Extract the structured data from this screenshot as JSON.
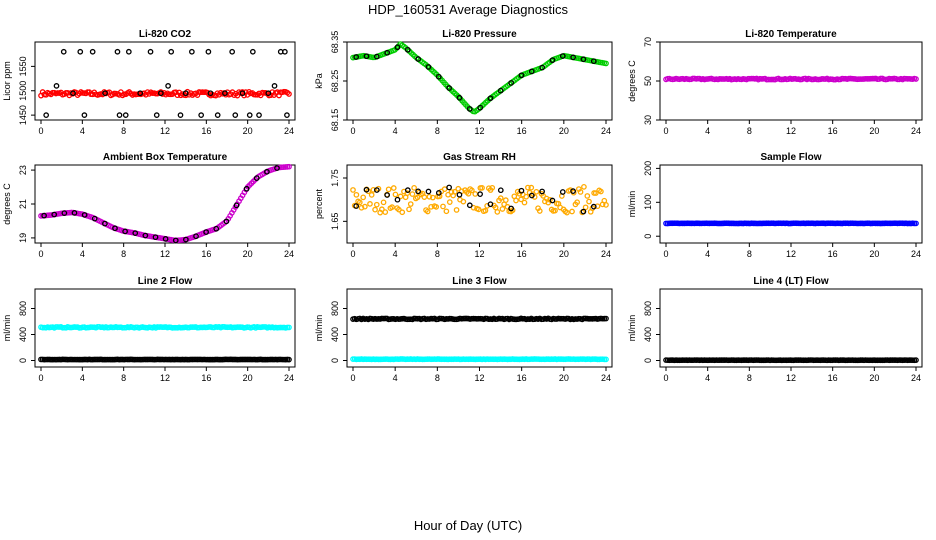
{
  "figure": {
    "title": "HDP_160531  Average Diagnostics",
    "x_caption": "Hour of Day (UTC)"
  },
  "chart_data": [
    {
      "type": "scatter",
      "title": "Li-820 CO2",
      "ylabel": "Licor ppm",
      "xlim": [
        0,
        24
      ],
      "ylim": [
        1440,
        1600
      ],
      "xticks": [
        0,
        4,
        8,
        12,
        16,
        20,
        24
      ],
      "yticks": [
        1450,
        1500,
        1550
      ],
      "colors": [
        "#ff0000",
        "#000000"
      ],
      "series": [
        {
          "values_model": "band",
          "x_range": [
            0,
            24
          ],
          "mean": 1494,
          "jitter": 4,
          "color": "#ff0000"
        },
        {
          "values": [
            [
              0.5,
              1450
            ],
            [
              1.5,
              1510
            ],
            [
              2.2,
              1580
            ],
            [
              3.1,
              1495
            ],
            [
              3.8,
              1580
            ],
            [
              4.2,
              1450
            ],
            [
              5.0,
              1580
            ],
            [
              6.2,
              1495
            ],
            [
              7.4,
              1580
            ],
            [
              7.6,
              1450
            ],
            [
              8.2,
              1450
            ],
            [
              8.5,
              1580
            ],
            [
              9.6,
              1495
            ],
            [
              10.6,
              1580
            ],
            [
              11.2,
              1450
            ],
            [
              11.6,
              1495
            ],
            [
              12.3,
              1510
            ],
            [
              12.6,
              1580
            ],
            [
              13.5,
              1450
            ],
            [
              14.0,
              1495
            ],
            [
              14.6,
              1580
            ],
            [
              15.5,
              1450
            ],
            [
              16.2,
              1580
            ],
            [
              16.4,
              1495
            ],
            [
              17.1,
              1450
            ],
            [
              17.8,
              1495
            ],
            [
              18.5,
              1580
            ],
            [
              18.8,
              1450
            ],
            [
              19.5,
              1495
            ],
            [
              20.2,
              1450
            ],
            [
              20.5,
              1580
            ],
            [
              21.1,
              1450
            ],
            [
              22.0,
              1495
            ],
            [
              22.6,
              1510
            ],
            [
              23.2,
              1580
            ],
            [
              23.6,
              1580
            ],
            [
              23.8,
              1450
            ]
          ],
          "color": "#000000",
          "shape": "circle"
        }
      ]
    },
    {
      "type": "scatter",
      "title": "Li-820 Pressure",
      "ylabel": "kPa",
      "xlim": [
        0,
        24
      ],
      "ylim": [
        68.15,
        68.35
      ],
      "xticks": [
        0,
        4,
        8,
        12,
        16,
        20,
        24
      ],
      "yticks": [
        68.15,
        68.25,
        68.35
      ],
      "colors": [
        "#00cc00",
        "#000000"
      ],
      "series": [
        {
          "values_model": "curve",
          "color": "#00cc00",
          "x": [
            0,
            1,
            2,
            3,
            4,
            4.5,
            5,
            6,
            7,
            8,
            9,
            10,
            11,
            11.5,
            12,
            13,
            14,
            15,
            16,
            17,
            18,
            19,
            20,
            21,
            22,
            23,
            24
          ],
          "y": [
            68.31,
            68.315,
            68.31,
            68.32,
            68.33,
            68.345,
            68.335,
            68.31,
            68.29,
            68.265,
            68.235,
            68.21,
            68.18,
            68.17,
            68.18,
            68.205,
            68.225,
            68.245,
            68.265,
            68.275,
            68.285,
            68.305,
            68.315,
            68.31,
            68.305,
            68.3,
            68.295
          ]
        }
      ]
    },
    {
      "type": "scatter",
      "title": "Li-820 Temperature",
      "ylabel": "degrees C",
      "xlim": [
        0,
        24
      ],
      "ylim": [
        30,
        70
      ],
      "xticks": [
        0,
        4,
        8,
        12,
        16,
        20,
        24
      ],
      "yticks": [
        30,
        50,
        70
      ],
      "colors": [
        "#cc00cc",
        "#000000"
      ],
      "series": [
        {
          "values_model": "band",
          "x_range": [
            0,
            24
          ],
          "mean": 51,
          "jitter": 0.3,
          "color": "#cc00cc"
        }
      ]
    },
    {
      "type": "scatter",
      "title": "Ambient Box Temperature",
      "ylabel": "degrees C",
      "xlim": [
        0,
        24
      ],
      "ylim": [
        18.7,
        23.3
      ],
      "xticks": [
        0,
        4,
        8,
        12,
        16,
        20,
        24
      ],
      "yticks": [
        19,
        21,
        23
      ],
      "colors": [
        "#cc00cc",
        "#000000"
      ],
      "series": [
        {
          "values_model": "curve",
          "color": "#cc00cc",
          "x": [
            0,
            1,
            2,
            3,
            4,
            5,
            6,
            7,
            8,
            9,
            10,
            11,
            12,
            13,
            14,
            15,
            16,
            17,
            18,
            19,
            20,
            21,
            22,
            23,
            24
          ],
          "y": [
            20.3,
            20.35,
            20.45,
            20.5,
            20.4,
            20.2,
            19.9,
            19.6,
            19.4,
            19.3,
            19.15,
            19.05,
            18.95,
            18.85,
            18.9,
            19.1,
            19.35,
            19.55,
            20.0,
            21.0,
            22.0,
            22.6,
            22.95,
            23.15,
            23.2
          ]
        }
      ]
    },
    {
      "type": "scatter",
      "title": "Gas Stream RH",
      "ylabel": "percent",
      "xlim": [
        0,
        24
      ],
      "ylim": [
        1.6,
        1.78
      ],
      "xticks": [
        0,
        4,
        8,
        12,
        16,
        20,
        24
      ],
      "yticks": [
        1.65,
        1.75
      ],
      "colors": [
        "#ffaa00",
        "#000000"
      ],
      "series": [
        {
          "values_model": "band",
          "x_range": [
            0,
            24
          ],
          "mean": 1.7,
          "jitter": 0.03,
          "color": "#ffaa00"
        }
      ]
    },
    {
      "type": "scatter",
      "title": "Sample Flow",
      "ylabel": "ml/min",
      "xlim": [
        0,
        24
      ],
      "ylim": [
        -20,
        210
      ],
      "xticks": [
        0,
        4,
        8,
        12,
        16,
        20,
        24
      ],
      "yticks": [
        0,
        100,
        200
      ],
      "colors": [
        "#0000ff",
        "#000000"
      ],
      "series": [
        {
          "values_model": "band",
          "x_range": [
            0,
            24
          ],
          "mean": 38,
          "jitter": 0.5,
          "color": "#0000ff"
        }
      ]
    },
    {
      "type": "scatter",
      "title": "Line 2 Flow",
      "ylabel": "ml/min",
      "xlim": [
        0,
        24
      ],
      "ylim": [
        -100,
        1100
      ],
      "xticks": [
        0,
        4,
        8,
        12,
        16,
        20,
        24
      ],
      "yticks": [
        0,
        400,
        800
      ],
      "colors": [
        "#00ffff",
        "#000000"
      ],
      "series": [
        {
          "values_model": "band",
          "x_range": [
            0,
            24
          ],
          "mean": 510,
          "jitter": 8,
          "color": "#00ffff"
        },
        {
          "values_model": "band",
          "x_range": [
            0,
            24
          ],
          "mean": 15,
          "jitter": 2,
          "color": "#000000"
        }
      ]
    },
    {
      "type": "scatter",
      "title": "Line 3 Flow",
      "ylabel": "ml/min",
      "xlim": [
        0,
        24
      ],
      "ylim": [
        -100,
        1100
      ],
      "xticks": [
        0,
        4,
        8,
        12,
        16,
        20,
        24
      ],
      "yticks": [
        0,
        400,
        800
      ],
      "colors": [
        "#00ffff",
        "#000000"
      ],
      "series": [
        {
          "values_model": "band",
          "x_range": [
            0,
            24
          ],
          "mean": 640,
          "jitter": 8,
          "color": "#000000"
        },
        {
          "values_model": "band",
          "x_range": [
            0,
            24
          ],
          "mean": 20,
          "jitter": 3,
          "color": "#00ffff"
        }
      ]
    },
    {
      "type": "scatter",
      "title": "Line 4 (LT) Flow",
      "ylabel": "ml/min",
      "xlim": [
        0,
        24
      ],
      "ylim": [
        -100,
        1100
      ],
      "xticks": [
        0,
        4,
        8,
        12,
        16,
        20,
        24
      ],
      "yticks": [
        0,
        400,
        800
      ],
      "colors": [
        "#00ffff",
        "#000000"
      ],
      "series": [
        {
          "values_model": "band",
          "x_range": [
            0,
            24
          ],
          "mean": 5,
          "jitter": 2,
          "color": "#000000"
        }
      ]
    }
  ]
}
